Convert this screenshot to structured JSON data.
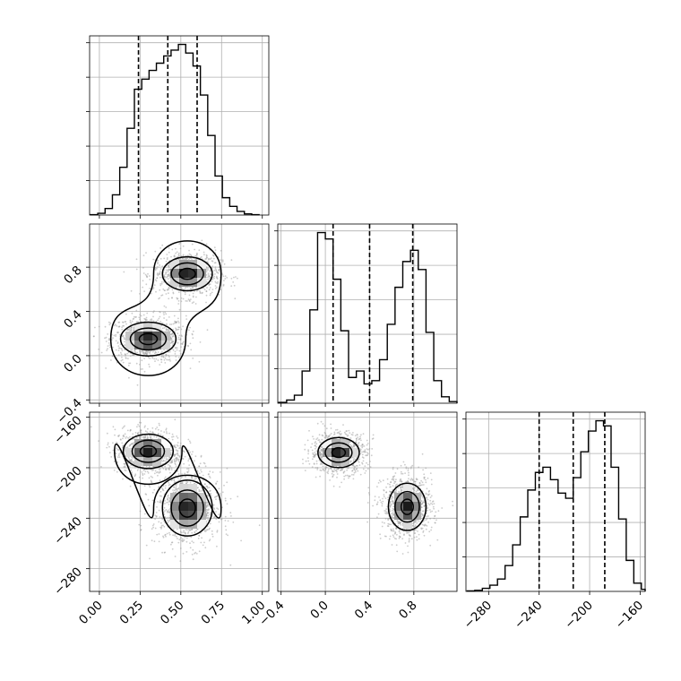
{
  "chart_data": {
    "type": "corner",
    "grid": true,
    "parameters": [
      {
        "range": [
          -0.06,
          1.04
        ],
        "ticks": [
          0.0,
          0.25,
          0.5,
          0.75,
          1.0
        ],
        "tick_labels": [
          "0.00",
          "0.25",
          "0.50",
          "0.75",
          "1.00"
        ],
        "ticks_as_y": [
          0.0,
          0.4,
          0.8
        ],
        "tick_labels_as_y": [
          "0.0",
          "0.4",
          "0.8"
        ]
      },
      {
        "range": [
          -0.43,
          1.19
        ],
        "ticks": [
          -0.4,
          0.0,
          0.4,
          0.8
        ],
        "tick_labels": [
          "−0.4",
          "0.0",
          "0.4",
          "0.8"
        ]
      },
      {
        "range": [
          -298,
          -156
        ],
        "ticks": [
          -280,
          -240,
          -200,
          -160
        ],
        "tick_labels": [
          "−280",
          "−240",
          "−200",
          "−160"
        ]
      }
    ],
    "y_tick_labels_rows": [
      {
        "row": 1,
        "labels": [
          "−0.4",
          "0.0",
          "0.4",
          "0.8"
        ]
      },
      {
        "row": 2,
        "labels": [
          "−160",
          "−200",
          "−240",
          "−280"
        ]
      }
    ],
    "histograms": [
      {
        "param": 0,
        "bin_edges": [
          -0.055,
          -0.01,
          0.035,
          0.08,
          0.125,
          0.17,
          0.215,
          0.26,
          0.305,
          0.35,
          0.395,
          0.44,
          0.485,
          0.53,
          0.575,
          0.62,
          0.665,
          0.71,
          0.755,
          0.8,
          0.845,
          0.89,
          0.935,
          0.98
        ],
        "counts": [
          0.3,
          1.2,
          4.5,
          14,
          33,
          60,
          87,
          94,
          100,
          105,
          110,
          114,
          118,
          112,
          103,
          83,
          55,
          27,
          12,
          6,
          2.5,
          0.8,
          0.3
        ],
        "quantiles": [
          0.24,
          0.42,
          0.6
        ]
      },
      {
        "param": 1,
        "bin_edges": [
          -0.42,
          -0.35,
          -0.28,
          -0.21,
          -0.14,
          -0.07,
          0.0,
          0.07,
          0.14,
          0.21,
          0.28,
          0.35,
          0.42,
          0.49,
          0.56,
          0.63,
          0.7,
          0.77,
          0.84,
          0.91,
          0.98,
          1.05,
          1.12,
          1.19
        ],
        "counts": [
          0.5,
          2,
          5,
          20,
          58,
          106,
          102,
          77,
          45,
          16,
          20,
          12,
          14,
          27,
          49,
          72,
          88,
          95,
          83,
          44,
          14,
          4,
          1
        ],
        "quantiles": [
          0.07,
          0.4,
          0.79
        ]
      },
      {
        "param": 2,
        "bin_edges": [
          -297,
          -291,
          -285,
          -279,
          -273,
          -267,
          -261,
          -255,
          -249,
          -243,
          -237,
          -231,
          -225,
          -219,
          -213,
          -207,
          -201,
          -195,
          -189,
          -183,
          -177,
          -171,
          -165,
          -159,
          -156
        ],
        "counts": [
          0.5,
          1,
          3,
          6,
          12,
          25,
          45,
          72,
          98,
          115,
          120,
          108,
          95,
          90,
          110,
          135,
          155,
          165,
          160,
          120,
          70,
          30,
          8,
          2
        ],
        "quantiles": [
          -240,
          -213,
          -188
        ]
      }
    ],
    "scatter_2d": [
      {
        "x_param": 0,
        "y_param": 1,
        "modes": [
          {
            "center": [
              0.3,
              0.15
            ],
            "sigma": [
              0.1,
              0.09
            ]
          },
          {
            "center": [
              0.54,
              0.74
            ],
            "sigma": [
              0.09,
              0.09
            ]
          }
        ]
      },
      {
        "x_param": 0,
        "y_param": 2,
        "modes": [
          {
            "center": [
              0.3,
              -187
            ],
            "sigma": [
              0.09,
              8
            ]
          },
          {
            "center": [
              0.54,
              -232
            ],
            "sigma": [
              0.09,
              13
            ]
          }
        ]
      },
      {
        "x_param": 1,
        "y_param": 2,
        "modes": [
          {
            "center": [
              0.12,
              -188
            ],
            "sigma": [
              0.11,
              7
            ]
          },
          {
            "center": [
              0.74,
              -231
            ],
            "sigma": [
              0.1,
              11
            ]
          }
        ]
      }
    ]
  }
}
